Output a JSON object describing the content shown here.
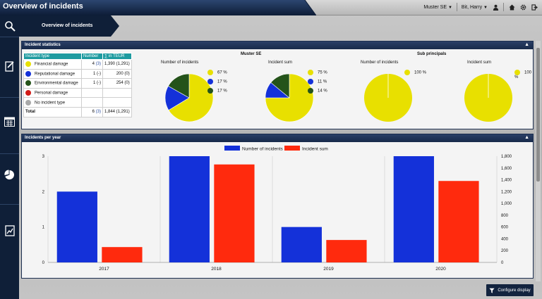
{
  "header": {
    "title": "Overview of incidents",
    "company": "Muster SE",
    "user": "Bit, Harry"
  },
  "breadcrumb": {
    "label": "Overview of incidents"
  },
  "stats_panel": {
    "title": "Incident statistics",
    "columns": [
      "Incident type",
      "Number",
      "∑ in TEUR"
    ],
    "rows": [
      {
        "label": "Financial damage",
        "color": "#e8e000",
        "number": "4",
        "number_link": "(3)",
        "sum": "1,390 (1,291)"
      },
      {
        "label": "Reputational damage",
        "color": "#1431d9",
        "number": "1",
        "number_link": "(-)",
        "sum": "200 (0)"
      },
      {
        "label": "Environmental damage",
        "color": "#24531a",
        "number": "1",
        "number_link": "(-)",
        "sum": "254 (0)"
      },
      {
        "label": "Personal damage",
        "color": "#d11b17",
        "number": "",
        "number_link": "",
        "sum": ""
      },
      {
        "label": "No incident type",
        "color": "#a8a8a8",
        "number": "",
        "number_link": "",
        "sum": ""
      }
    ],
    "total": {
      "label": "Total",
      "number": "6",
      "number_link": "(3)",
      "sum": "1,844 (1,291)"
    },
    "group1": "Muster SE",
    "group2": "Sub principals",
    "pies": [
      {
        "caption": "Number of incidents",
        "slices": [
          67,
          17,
          17
        ],
        "labels": [
          "67 %",
          "17 %",
          "17 %"
        ],
        "colors": [
          "#e8e000",
          "#1431d9",
          "#24531a"
        ]
      },
      {
        "caption": "Incident sum",
        "slices": [
          75,
          11,
          14
        ],
        "labels": [
          "75 %",
          "11 %",
          "14 %"
        ],
        "colors": [
          "#e8e000",
          "#1431d9",
          "#24531a"
        ]
      },
      {
        "caption": "Number of incidents",
        "slices": [
          100
        ],
        "labels": [
          "100 %"
        ],
        "colors": [
          "#e8e000"
        ]
      },
      {
        "caption": "Incident sum",
        "slices": [
          100
        ],
        "labels": [
          "100 %"
        ],
        "colors": [
          "#e8e000"
        ]
      }
    ]
  },
  "year_panel": {
    "title": "Incidents per year"
  },
  "chart_data": {
    "type": "bar",
    "categories": [
      "2017",
      "2018",
      "2019",
      "2020"
    ],
    "series": [
      {
        "name": "Number of incidents",
        "color": "#1431d9",
        "axis": "left",
        "values": [
          2,
          3,
          1,
          3
        ]
      },
      {
        "name": "Incident sum",
        "color": "#ff2a0d",
        "axis": "right",
        "values": [
          260,
          1660,
          380,
          1380
        ]
      }
    ],
    "y_left": {
      "ylim": [
        0,
        3
      ],
      "ticks": [
        "0",
        "1",
        "2",
        "3"
      ]
    },
    "y_right": {
      "ylim": [
        0,
        1800
      ],
      "ticks": [
        "0",
        "200",
        "400",
        "600",
        "800",
        "1,000",
        "1,200",
        "1,400",
        "1,600",
        "1,800"
      ]
    },
    "legend": "top-center",
    "grid": "vertical"
  },
  "configure_button": {
    "label": "Configure display"
  },
  "icons": [
    "search-icon",
    "edit-icon",
    "calendar-icon",
    "pie-chart-icon",
    "report-icon",
    "home-icon",
    "gear-icon",
    "logout-icon",
    "user-icon",
    "filter-icon"
  ]
}
